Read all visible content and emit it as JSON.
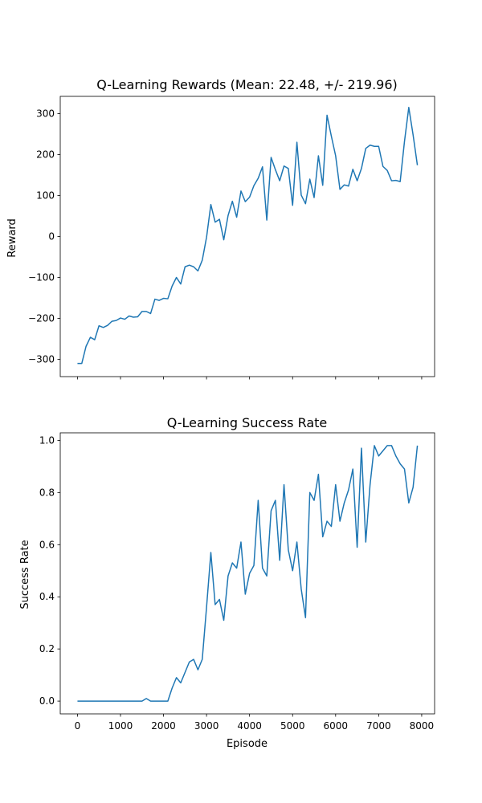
{
  "chart_data": [
    {
      "type": "line",
      "title": "Q-Learning Rewards (Mean: 22.48, +/- 219.96)",
      "xlabel": "",
      "ylabel": "Reward",
      "xlim": [
        -400,
        8300
      ],
      "ylim": [
        -342,
        342
      ],
      "xticks": [
        0,
        1000,
        2000,
        3000,
        4000,
        5000,
        6000,
        7000,
        8000
      ],
      "xtick_labels_visible": false,
      "yticks": [
        -300,
        -200,
        -100,
        0,
        100,
        200,
        300
      ],
      "ytick_labels": [
        "−300",
        "−200",
        "−100",
        "0",
        "100",
        "200",
        "300"
      ],
      "grid": false,
      "color": "#1f77b4",
      "series": [
        {
          "x": [
            0,
            100,
            200,
            300,
            400,
            500,
            600,
            700,
            800,
            900,
            1000,
            1100,
            1200,
            1300,
            1400,
            1500,
            1600,
            1700,
            1800,
            1900,
            2000,
            2100,
            2200,
            2300,
            2400,
            2500,
            2600,
            2700,
            2800,
            2900,
            3000,
            3100,
            3200,
            3300,
            3400,
            3500,
            3600,
            3700,
            3800,
            3900,
            4000,
            4100,
            4200,
            4300,
            4400,
            4500,
            4600,
            4700,
            4800,
            4900,
            5000,
            5100,
            5200,
            5300,
            5400,
            5500,
            5600,
            5700,
            5800,
            5900,
            6000,
            6100,
            6200,
            6300,
            6400,
            6500,
            6600,
            6700,
            6800,
            6900,
            7000,
            7100,
            7200,
            7300,
            7400,
            7500,
            7600,
            7700,
            7800,
            7900
          ],
          "values": [
            -310,
            -310,
            -268,
            -246,
            -252,
            -218,
            -222,
            -217,
            -207,
            -205,
            -199,
            -202,
            -194,
            -197,
            -196,
            -183,
            -183,
            -188,
            -153,
            -156,
            -151,
            -152,
            -121,
            -100,
            -116,
            -74,
            -70,
            -74,
            -84,
            -58,
            -2,
            78,
            35,
            42,
            -8,
            51,
            86,
            47,
            111,
            85,
            96,
            124,
            142,
            170,
            40,
            193,
            163,
            136,
            172,
            166,
            76,
            230,
            101,
            80,
            140,
            95,
            197,
            125,
            296,
            245,
            197,
            115,
            126,
            123,
            164,
            136,
            166,
            215,
            223,
            220,
            220,
            171,
            161,
            136,
            137,
            134,
            232,
            315,
            248,
            174
          ]
        }
      ]
    },
    {
      "type": "line",
      "title": "Q-Learning Success Rate",
      "xlabel": "Episode",
      "ylabel": "Success Rate",
      "xlim": [
        -400,
        8300
      ],
      "ylim": [
        -0.049,
        1.029
      ],
      "xticks": [
        0,
        1000,
        2000,
        3000,
        4000,
        5000,
        6000,
        7000,
        8000
      ],
      "xtick_labels": [
        "0",
        "1000",
        "2000",
        "3000",
        "4000",
        "5000",
        "6000",
        "7000",
        "8000"
      ],
      "yticks": [
        0.0,
        0.2,
        0.4,
        0.6,
        0.8,
        1.0
      ],
      "ytick_labels": [
        "0.0",
        "0.2",
        "0.4",
        "0.6",
        "0.8",
        "1.0"
      ],
      "grid": false,
      "color": "#1f77b4",
      "series": [
        {
          "x": [
            0,
            100,
            200,
            300,
            400,
            500,
            600,
            700,
            800,
            900,
            1000,
            1100,
            1200,
            1300,
            1400,
            1500,
            1600,
            1700,
            1800,
            1900,
            2000,
            2100,
            2200,
            2300,
            2400,
            2500,
            2600,
            2700,
            2800,
            2900,
            3000,
            3100,
            3200,
            3300,
            3400,
            3500,
            3600,
            3700,
            3800,
            3900,
            4000,
            4100,
            4200,
            4300,
            4400,
            4500,
            4600,
            4700,
            4800,
            4900,
            5000,
            5100,
            5200,
            5300,
            5400,
            5500,
            5600,
            5700,
            5800,
            5900,
            6000,
            6100,
            6200,
            6300,
            6400,
            6500,
            6600,
            6700,
            6800,
            6900,
            7000,
            7100,
            7200,
            7300,
            7400,
            7500,
            7600,
            7700,
            7800,
            7900
          ],
          "values": [
            0,
            0,
            0,
            0,
            0,
            0,
            0,
            0,
            0,
            0,
            0,
            0,
            0,
            0,
            0,
            0,
            0.01,
            0,
            0,
            0,
            0,
            0,
            0.05,
            0.09,
            0.07,
            0.11,
            0.15,
            0.16,
            0.12,
            0.16,
            0.36,
            0.57,
            0.37,
            0.39,
            0.31,
            0.48,
            0.53,
            0.51,
            0.61,
            0.41,
            0.49,
            0.52,
            0.77,
            0.51,
            0.48,
            0.73,
            0.77,
            0.54,
            0.83,
            0.58,
            0.5,
            0.61,
            0.43,
            0.32,
            0.8,
            0.77,
            0.87,
            0.63,
            0.69,
            0.67,
            0.83,
            0.69,
            0.76,
            0.81,
            0.89,
            0.59,
            0.97,
            0.61,
            0.83,
            0.98,
            0.94,
            0.96,
            0.98,
            0.98,
            0.94,
            0.91,
            0.89,
            0.76,
            0.82,
            0.98
          ]
        }
      ]
    }
  ]
}
